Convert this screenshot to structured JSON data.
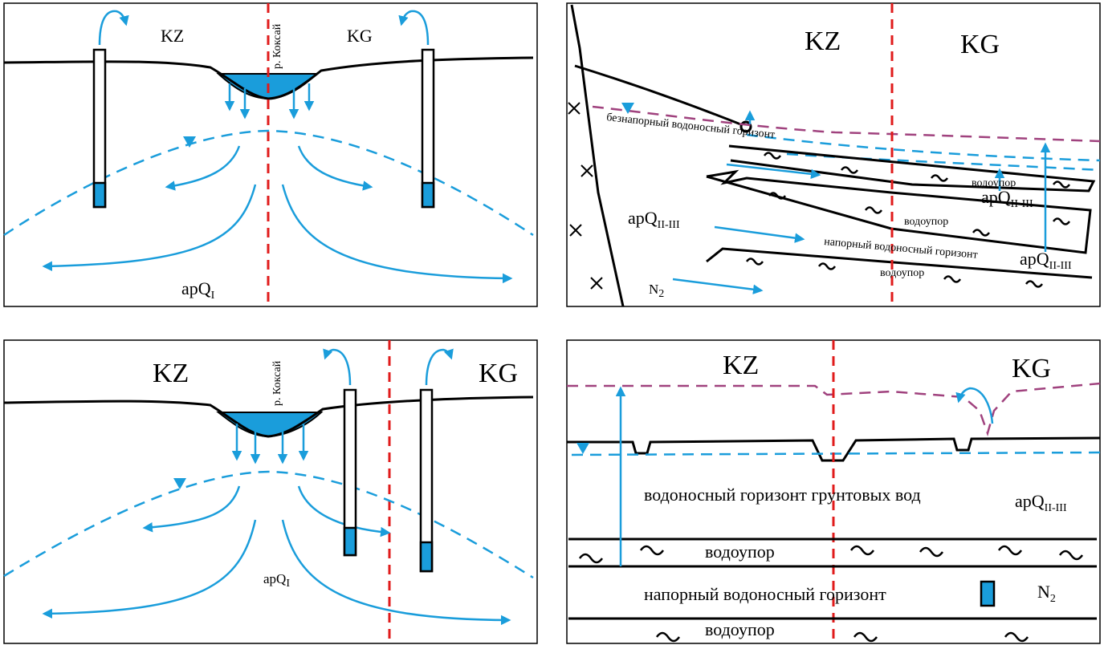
{
  "colors": {
    "water_blue": "#1a9ddb",
    "divider_red": "#e01b1b",
    "piezometric_purple": "#a0427e"
  },
  "panel_tl": {
    "label_kz": "KZ",
    "label_kg": "KG",
    "river": "р. Коксай",
    "aquifer": "apQ",
    "aquifer_sub": "I"
  },
  "panel_tr": {
    "label_kz": "KZ",
    "label_kg": "KG",
    "unconfined": "безнапорный водоносный горизонт",
    "aquitard_1": "водоупор",
    "aquitard_2": "водоупор",
    "aquitard_3": "водоупор",
    "confined": "напорный водоносный горизонт",
    "aq_a": "apQ",
    "aq_a_sub": "II-III",
    "aq_b": "apQ",
    "aq_b_sub": "II-III",
    "aq_c": "apQ",
    "aq_c_sub": "II-III",
    "n2": "N",
    "n2_sub": "2"
  },
  "panel_bl": {
    "label_kz": "KZ",
    "label_kg": "KG",
    "river": "р. Коксай",
    "aquifer": "apQ",
    "aquifer_sub": "I"
  },
  "panel_br": {
    "label_kz": "KZ",
    "label_kg": "KG",
    "groundwater": "водоносный горизонт грунтовых вод",
    "aquifer": "apQ",
    "aquifer_sub": "II-III",
    "aquitard_1": "водоупор",
    "confined": "напорный водоносный горизонт",
    "n2": "N",
    "n2_sub": "2",
    "aquitard_2": "водоупор"
  }
}
